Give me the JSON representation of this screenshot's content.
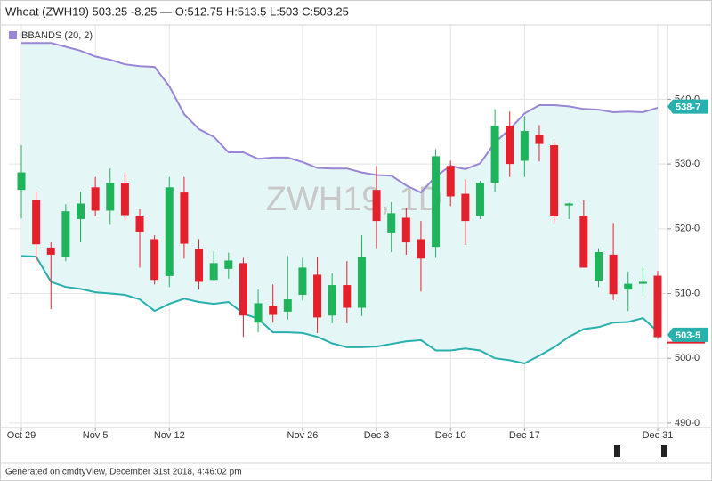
{
  "chart_data": {
    "type": "candlestick",
    "title": "Wheat (ZWH19) 503.25 -8.25 — O:512.75 H:513.5 L:503 C:503.25",
    "watermark": "ZWH19, 1D",
    "footer": "Generated on cmdtyView, December 31st 2018, 4:46:02 pm",
    "categories": [
      "Oct 29",
      null,
      null,
      null,
      null,
      "Nov 5",
      null,
      null,
      null,
      null,
      "Nov 12",
      null,
      null,
      null,
      null,
      null,
      null,
      null,
      null,
      "Nov 26",
      null,
      null,
      null,
      null,
      "Dec 3",
      null,
      null,
      null,
      null,
      "Dec 10",
      null,
      null,
      null,
      null,
      "Dec 17",
      null,
      null,
      null,
      null,
      null,
      null,
      null,
      null,
      "Dec 31"
    ],
    "open": [
      526.0,
      524.5,
      517.1,
      515.7,
      521.5,
      526.4,
      522.8,
      527.0,
      521.9,
      518.4,
      512.7,
      525.6,
      516.9,
      512.1,
      513.8,
      514.7,
      505.5,
      508.1,
      507.2,
      509.8,
      512.9,
      506.6,
      511.3,
      507.8,
      526.0,
      519.3,
      521.7,
      518.4,
      517.2,
      529.7,
      525.4,
      522.0,
      527.1,
      535.9,
      530.5,
      534.5,
      532.9,
      523.6,
      522.0,
      512.0,
      516.0,
      510.6,
      511.5,
      512.75
    ],
    "high": [
      532.9,
      525.7,
      517.9,
      523.8,
      525.7,
      528.0,
      529.3,
      528.7,
      523.0,
      519.0,
      528.0,
      528.0,
      518.4,
      516.5,
      516.3,
      515.5,
      510.6,
      511.4,
      515.8,
      515.5,
      515.7,
      513.1,
      515.0,
      519.0,
      529.7,
      524.1,
      523.2,
      521.2,
      532.3,
      530.5,
      527.6,
      527.4,
      538.5,
      538.1,
      537.4,
      536.0,
      533.5,
      524.0,
      524.4,
      517.0,
      520.9,
      513.4,
      514.2,
      513.5
    ],
    "low": [
      521.6,
      514.7,
      507.6,
      515.0,
      517.9,
      521.9,
      520.6,
      521.3,
      514.0,
      511.4,
      511.0,
      515.4,
      510.6,
      512.0,
      512.3,
      503.3,
      504.0,
      505.5,
      506.0,
      508.9,
      503.9,
      505.4,
      505.4,
      506.5,
      517.0,
      516.4,
      516.0,
      510.3,
      515.5,
      523.5,
      517.5,
      521.5,
      525.7,
      528.0,
      528.0,
      530.4,
      521.0,
      521.5,
      514.0,
      511.0,
      509.0,
      507.3,
      510.0,
      503
    ],
    "close": [
      528.7,
      517.6,
      516.0,
      522.7,
      523.9,
      522.8,
      527.1,
      522.1,
      519.5,
      512.1,
      526.4,
      517.7,
      511.8,
      514.7,
      515.1,
      506.6,
      508.5,
      506.7,
      509.1,
      514.0,
      506.3,
      511.3,
      507.8,
      515.7,
      521.2,
      522.4,
      517.9,
      515.4,
      531.2,
      525.0,
      521.2,
      527.1,
      535.9,
      530.0,
      535.1,
      533.1,
      521.9,
      523.9,
      514.0,
      516.4,
      509.9,
      511.5,
      511.8,
      503.25
    ],
    "up_color": "#1fb35b",
    "down_color": "#e3202b",
    "bbands": {
      "name": "BBANDS (20, 2)",
      "upper_color": "#9a86d6",
      "lower_color": "#27b0ac",
      "fill_color": "#e5f6f7",
      "upper": [
        548.7,
        548.7,
        548.7,
        548.1,
        547.5,
        546.6,
        546.1,
        545.4,
        545.1,
        545.0,
        542.0,
        537.7,
        535.4,
        534.2,
        531.8,
        531.8,
        530.8,
        531.0,
        531.0,
        530.3,
        529.4,
        529.3,
        529.3,
        528.7,
        528.3,
        528.2,
        526.7,
        525.6,
        528.1,
        529.7,
        529.2,
        530.1,
        533.3,
        535.4,
        537.8,
        539.1,
        539.1,
        538.9,
        538.5,
        538.4,
        538.0,
        538.1,
        538.0,
        538.7
      ],
      "lower": [
        515.8,
        515.7,
        511.8,
        511.0,
        510.7,
        510.2,
        510.0,
        509.8,
        509.1,
        507.3,
        508.4,
        509.2,
        508.7,
        508.4,
        508.7,
        506.9,
        506.1,
        504.0,
        504.0,
        503.9,
        503.3,
        502.3,
        501.7,
        501.7,
        501.8,
        502.2,
        502.6,
        502.8,
        501.2,
        501.2,
        501.5,
        501.2,
        500.0,
        499.7,
        499.2,
        500.4,
        501.7,
        503.3,
        504.5,
        504.8,
        505.5,
        505.6,
        506.2,
        504.1
      ]
    },
    "price_tags": [
      {
        "label": "538-7",
        "value": 538.875,
        "color": "#27b0ac"
      },
      {
        "label": "503-5",
        "value": 503.625,
        "color": "#27b0ac"
      }
    ],
    "ylim": [
      489.3,
      550.1
    ],
    "yticks": [
      {
        "value": 490,
        "label": "490-0"
      },
      {
        "value": 500,
        "label": "500-0"
      },
      {
        "value": 510,
        "label": "510-0"
      },
      {
        "value": 520,
        "label": "520-0"
      },
      {
        "value": 530,
        "label": "530-0"
      },
      {
        "value": 540,
        "label": "540-0"
      }
    ],
    "grid": true
  }
}
